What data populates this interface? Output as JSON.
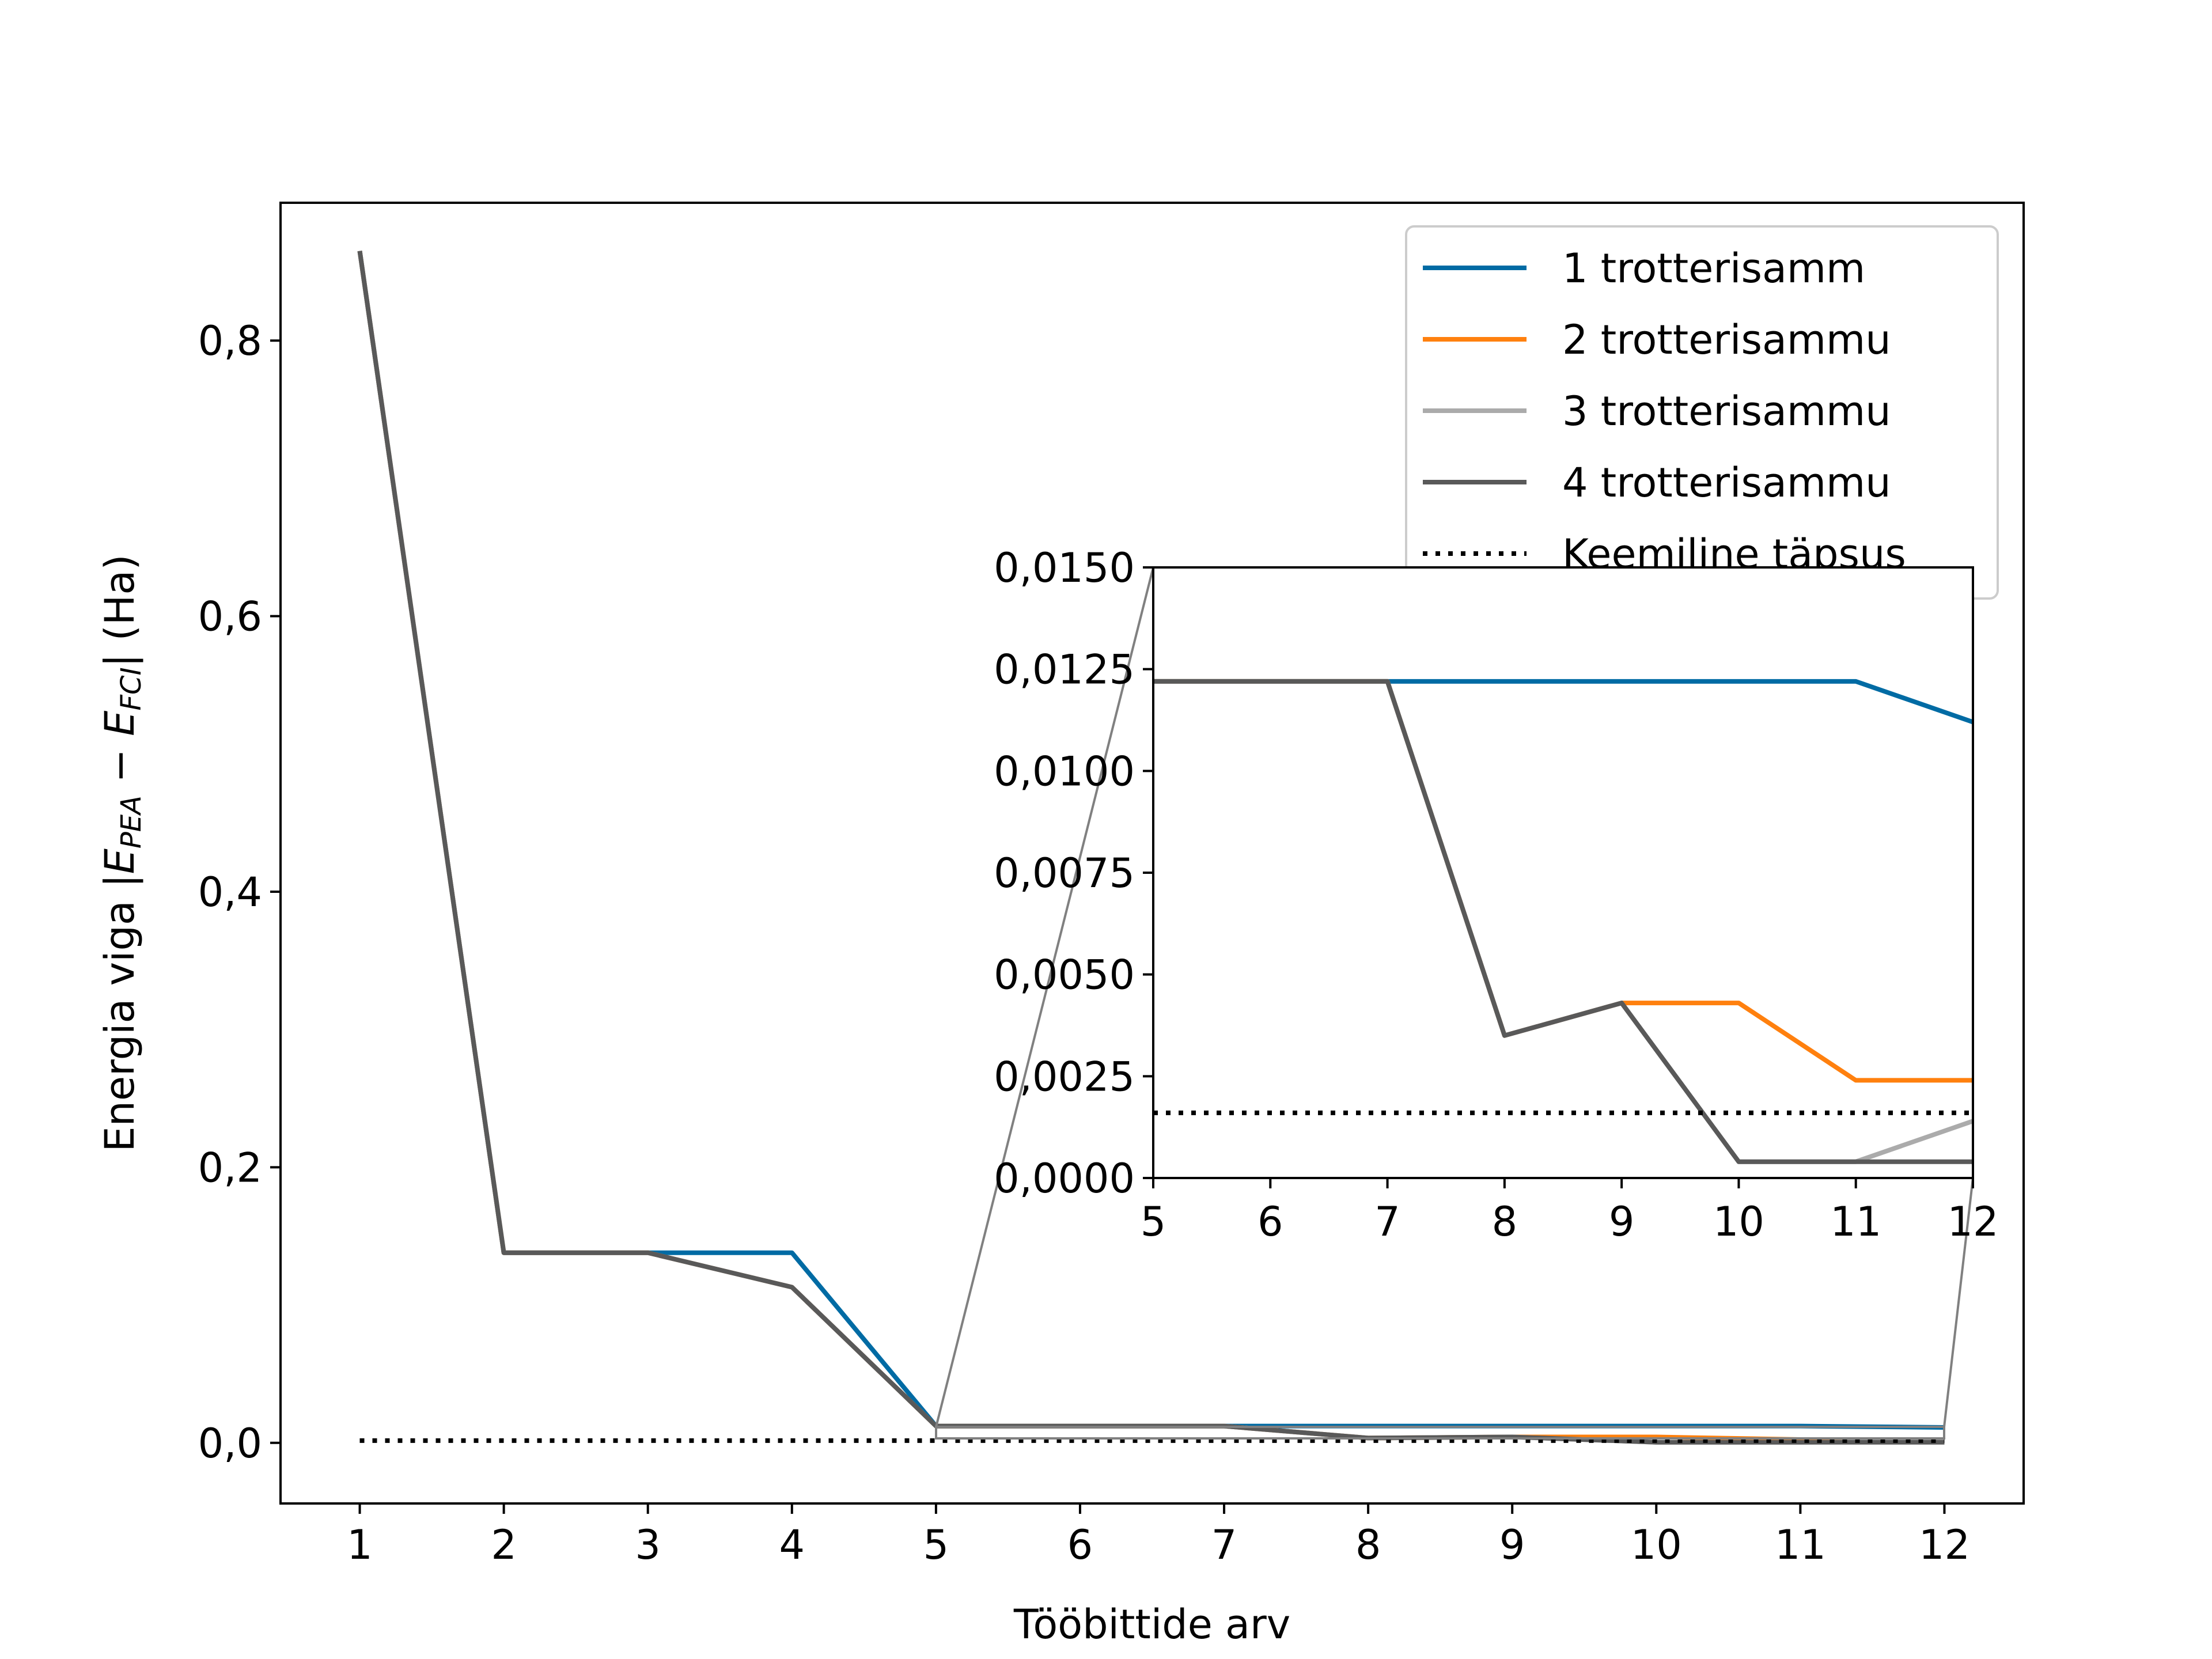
{
  "chart_data": {
    "type": "line",
    "xlabel": "Tööbittide arv",
    "ylabel": {
      "prefix": "Energia viga |",
      "e1": "E",
      "s1": "PEA",
      "minus": " − ",
      "e2": "E",
      "s2": "FCI",
      "suffix": "| (Ha)"
    },
    "x": [
      1,
      2,
      3,
      4,
      5,
      6,
      7,
      8,
      9,
      10,
      11,
      12
    ],
    "ylim": [
      -0.044,
      0.9
    ],
    "yticks": [
      {
        "value": 0.0,
        "label": "0,0"
      },
      {
        "value": 0.2,
        "label": "0,2"
      },
      {
        "value": 0.4,
        "label": "0,4"
      },
      {
        "value": 0.6,
        "label": "0,6"
      },
      {
        "value": 0.8,
        "label": "0,8"
      }
    ],
    "xticks": [
      "1",
      "2",
      "3",
      "4",
      "5",
      "6",
      "7",
      "8",
      "9",
      "10",
      "11",
      "12"
    ],
    "series": [
      {
        "name": "1 trotterisamm",
        "color": "#006BA4",
        "style": "solid",
        "values": [
          0.865,
          0.138,
          0.138,
          0.138,
          0.0122,
          0.0122,
          0.0122,
          0.0122,
          0.0122,
          0.0122,
          0.0122,
          0.0112
        ]
      },
      {
        "name": "2 trotterisammu",
        "color": "#FF800E",
        "style": "solid",
        "values": [
          0.865,
          0.138,
          0.138,
          0.113,
          0.0122,
          0.0122,
          0.0122,
          0.0035,
          0.0043,
          0.0043,
          0.0024,
          0.0024
        ]
      },
      {
        "name": "3 trotterisammu",
        "color": "#ABABAB",
        "style": "solid",
        "values": [
          0.865,
          0.138,
          0.138,
          0.113,
          0.0122,
          0.0122,
          0.0122,
          0.0035,
          0.0043,
          0.0004,
          0.0004,
          0.0014
        ]
      },
      {
        "name": "4 trotterisammu",
        "color": "#595959",
        "style": "solid",
        "values": [
          0.865,
          0.138,
          0.138,
          0.113,
          0.0122,
          0.0122,
          0.0122,
          0.0035,
          0.0043,
          0.0004,
          0.0004,
          0.0004
        ]
      },
      {
        "name": "Keemiline täpsus",
        "color": "#000000",
        "style": "dotted",
        "values": [
          0.0016,
          0.0016,
          0.0016,
          0.0016,
          0.0016,
          0.0016,
          0.0016,
          0.0016,
          0.0016,
          0.0016,
          0.0016,
          0.0016
        ]
      }
    ],
    "legend": "top-right",
    "inset": {
      "xlim": [
        5,
        12
      ],
      "ylim": [
        0,
        0.015
      ],
      "xticks": [
        "5",
        "6",
        "7",
        "8",
        "9",
        "10",
        "11",
        "12"
      ],
      "yticks": [
        {
          "value": 0.0,
          "label": "0,0000"
        },
        {
          "value": 0.0025,
          "label": "0,0025"
        },
        {
          "value": 0.005,
          "label": "0,0050"
        },
        {
          "value": 0.0075,
          "label": "0,0075"
        },
        {
          "value": 0.01,
          "label": "0,0100"
        },
        {
          "value": 0.0125,
          "label": "0,0125"
        },
        {
          "value": 0.015,
          "label": "0,0150"
        }
      ]
    }
  }
}
